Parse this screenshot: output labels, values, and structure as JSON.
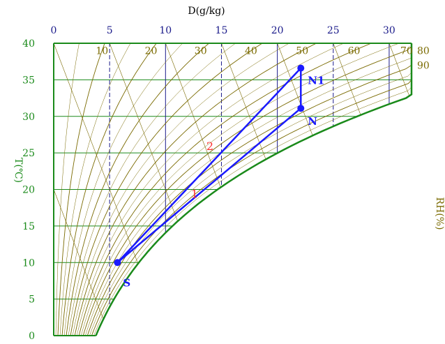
{
  "chart_data": {
    "type": "psychrometric",
    "title": "D(g/kg)",
    "xlabel": "D(g/kg)",
    "ylabel": "T(℃)",
    "right_label": "RH(%)",
    "xlim": [
      0,
      32
    ],
    "ylim": [
      0,
      40
    ],
    "x_ticks": [
      "0",
      "5",
      "10",
      "15",
      "20",
      "25",
      "30"
    ],
    "y_ticks": [
      "0",
      "5",
      "10",
      "15",
      "20",
      "25",
      "30",
      "35",
      "40"
    ],
    "rh_labels": [
      {
        "text": "10",
        "rh": 10,
        "t": 39
      },
      {
        "text": "20",
        "rh": 20,
        "t": 39
      },
      {
        "text": "30",
        "rh": 30,
        "t": 39
      },
      {
        "text": "40",
        "rh": 40,
        "t": 39
      },
      {
        "text": "50",
        "rh": 50,
        "t": 39
      },
      {
        "text": "60",
        "rh": 60,
        "t": 39
      },
      {
        "text": "70",
        "rh": 70,
        "t": 39
      },
      {
        "text": "80",
        "rh": 80,
        "t": 39
      },
      {
        "text": "90",
        "rh": 90,
        "t": 37
      }
    ],
    "points": [
      {
        "name": "S",
        "d": 5.7,
        "t": 10
      },
      {
        "name": "N1",
        "d": 22.1,
        "t": 36.6
      },
      {
        "name": "N",
        "d": 22.1,
        "t": 31.1
      }
    ],
    "process_lines": [
      {
        "label": "2",
        "from": "S",
        "to": "N1"
      },
      {
        "label": "1",
        "from": "S",
        "to": "N"
      },
      {
        "label": "",
        "from": "N1",
        "to": "N"
      }
    ],
    "colors": {
      "grid": "#7a6a00",
      "saturation": "#1a8a1a",
      "axis_y": "#1a8a1a",
      "axis_x": "#1a1a8a",
      "process": "#1a1aff",
      "process_label": "#ff3030",
      "rh_label": "#7a6a00"
    }
  }
}
